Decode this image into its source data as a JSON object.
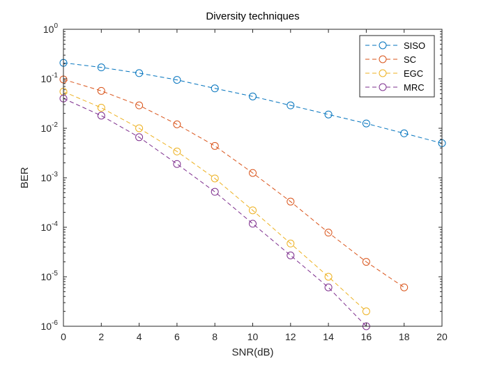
{
  "chart_data": {
    "type": "line",
    "title": "Diversity techniques",
    "xlabel": "SNR(dB)",
    "ylabel": "BER",
    "xlim": [
      0,
      20
    ],
    "ylim": [
      1e-06,
      1
    ],
    "yscale": "log",
    "xticks": [
      0,
      2,
      4,
      6,
      8,
      10,
      12,
      14,
      16,
      18,
      20
    ],
    "yticks": [
      {
        "exp": -6,
        "base": "10",
        "sup": "-6"
      },
      {
        "exp": -5,
        "base": "10",
        "sup": "-5"
      },
      {
        "exp": -4,
        "base": "10",
        "sup": "-4"
      },
      {
        "exp": -3,
        "base": "10",
        "sup": "-3"
      },
      {
        "exp": -2,
        "base": "10",
        "sup": "-2"
      },
      {
        "exp": -1,
        "base": "10",
        "sup": "-1"
      },
      {
        "exp": 0,
        "base": "10",
        "sup": "0"
      }
    ],
    "legend_position": "top-right",
    "series": [
      {
        "name": "SISO",
        "color": "#0072BD",
        "x": [
          0,
          2,
          4,
          6,
          8,
          10,
          12,
          14,
          16,
          18,
          20
        ],
        "y": [
          0.21,
          0.17,
          0.13,
          0.095,
          0.064,
          0.044,
          0.029,
          0.019,
          0.0125,
          0.0079,
          0.005
        ]
      },
      {
        "name": "SC",
        "color": "#D95319",
        "x": [
          0,
          2,
          4,
          6,
          8,
          10,
          12,
          14,
          16,
          18
        ],
        "y": [
          0.097,
          0.057,
          0.029,
          0.012,
          0.0044,
          0.00125,
          0.00033,
          7.8e-05,
          2e-05,
          6.1e-06
        ]
      },
      {
        "name": "EGC",
        "color": "#EDB120",
        "x": [
          0,
          2,
          4,
          6,
          8,
          10,
          12,
          14,
          16
        ],
        "y": [
          0.055,
          0.026,
          0.01,
          0.0034,
          0.00097,
          0.00022,
          4.7e-05,
          1e-05,
          2e-06
        ]
      },
      {
        "name": "MRC",
        "color": "#7E2F8E",
        "x": [
          0,
          2,
          4,
          6,
          8,
          10,
          12,
          14,
          16
        ],
        "y": [
          0.04,
          0.018,
          0.0066,
          0.0019,
          0.00052,
          0.000118,
          2.7e-05,
          6.1e-06,
          1e-06
        ]
      }
    ]
  }
}
